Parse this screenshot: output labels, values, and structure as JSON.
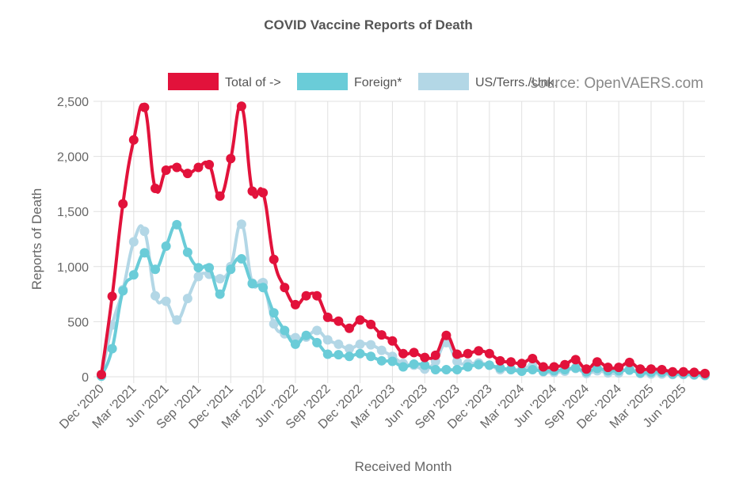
{
  "chart_data": {
    "type": "line",
    "title": "COVID Vaccine Reports of Death",
    "xlabel": "Received Month",
    "ylabel": "Reports of Death",
    "ylim": [
      0,
      2500
    ],
    "yticks": [
      0,
      500,
      1000,
      1500,
      2000,
      2500
    ],
    "ytick_labels": [
      "0",
      "500",
      "1,000",
      "1,500",
      "2,000",
      "2,500"
    ],
    "xtick_labels": [
      "Dec '2020",
      "Mar '2021",
      "Jun '2021",
      "Sep '2021",
      "Dec '2021",
      "Mar '2022",
      "Jun '2022",
      "Sep '2022",
      "Dec '2022",
      "Mar '2023",
      "Jun '2023",
      "Sep '2023",
      "Dec '2023",
      "Mar '2024",
      "Jun '2024",
      "Sep '2024",
      "Dec '2024",
      "Mar '2025",
      "Jun '2025"
    ],
    "x": [
      "Dec '2020",
      "Jan '2021",
      "Feb '2021",
      "Mar '2021",
      "Apr '2021",
      "May '2021",
      "Jun '2021",
      "Jul '2021",
      "Aug '2021",
      "Sep '2021",
      "Oct '2021",
      "Nov '2021",
      "Dec '2021",
      "Jan '2022",
      "Feb '2022",
      "Mar '2022",
      "Apr '2022",
      "May '2022",
      "Jun '2022",
      "Jul '2022",
      "Aug '2022",
      "Sep '2022",
      "Oct '2022",
      "Nov '2022",
      "Dec '2022",
      "Jan '2023",
      "Feb '2023",
      "Mar '2023",
      "Apr '2023",
      "May '2023",
      "Jun '2023",
      "Jul '2023",
      "Aug '2023",
      "Sep '2023",
      "Oct '2023",
      "Nov '2023",
      "Dec '2023",
      "Jan '2024",
      "Feb '2024",
      "Mar '2024",
      "Apr '2024",
      "May '2024",
      "Jun '2024",
      "Jul '2024",
      "Aug '2024",
      "Sep '2024",
      "Oct '2024",
      "Nov '2024",
      "Dec '2024",
      "Jan '2025",
      "Feb '2025",
      "Mar '2025",
      "Apr '2025",
      "May '2025",
      "Jun '2025",
      "Jul '2025",
      "Aug '2025"
    ],
    "legend_position": "top",
    "grid": true,
    "series": [
      {
        "name": "Total of ->",
        "color": "#e2123b",
        "values": [
          20,
          730,
          1570,
          2150,
          2445,
          1710,
          1875,
          1900,
          1845,
          1900,
          1925,
          1640,
          1980,
          2455,
          1685,
          1670,
          1065,
          810,
          655,
          735,
          735,
          540,
          505,
          440,
          515,
          475,
          380,
          325,
          210,
          220,
          175,
          195,
          375,
          205,
          210,
          235,
          210,
          145,
          135,
          120,
          165,
          90,
          90,
          110,
          155,
          70,
          135,
          85,
          85,
          130,
          70,
          70,
          65,
          45,
          45,
          40,
          30
        ]
      },
      {
        "name": "Foreign*",
        "color": "#6accd8",
        "values": [
          5,
          255,
          780,
          925,
          1125,
          975,
          1185,
          1380,
          1130,
          990,
          990,
          750,
          975,
          1070,
          845,
          810,
          580,
          420,
          295,
          375,
          310,
          205,
          200,
          185,
          210,
          185,
          145,
          140,
          90,
          115,
          105,
          65,
          65,
          65,
          90,
          110,
          105,
          80,
          65,
          50,
          65,
          50,
          55,
          65,
          80,
          45,
          75,
          55,
          55,
          60,
          35,
          40,
          40,
          25,
          25,
          20,
          15
        ]
      },
      {
        "name": "US/Terrs./Unk.",
        "color": "#b3d7e6",
        "values": [
          10,
          470,
          790,
          1225,
          1320,
          735,
          685,
          515,
          710,
          910,
          930,
          890,
          1000,
          1385,
          850,
          855,
          480,
          390,
          355,
          360,
          420,
          335,
          295,
          255,
          295,
          290,
          240,
          185,
          120,
          105,
          70,
          140,
          310,
          140,
          120,
          125,
          105,
          65,
          70,
          65,
          100,
          45,
          40,
          50,
          75,
          30,
          55,
          35,
          35,
          75,
          30,
          25,
          25,
          20,
          20,
          15,
          10
        ]
      }
    ]
  },
  "source_note": "source: OpenVAERS.com"
}
